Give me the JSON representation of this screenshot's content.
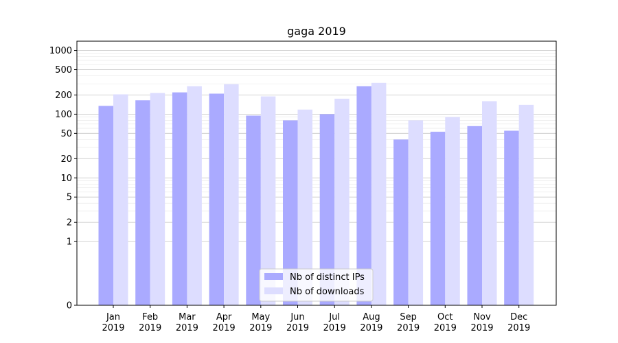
{
  "chart_data": {
    "type": "bar",
    "title": "gaga 2019",
    "xlabel": "",
    "ylabel": "",
    "yscale": "symlog",
    "ylim": [
      0,
      1400
    ],
    "yticks": [
      0,
      1,
      2,
      5,
      10,
      20,
      50,
      100,
      200,
      500,
      1000
    ],
    "ytick_labels": [
      "0",
      "1",
      "2",
      "5",
      "10",
      "20",
      "50",
      "100",
      "200",
      "500",
      "1000"
    ],
    "categories": [
      "Jan\n2019",
      "Feb\n2019",
      "Mar\n2019",
      "Apr\n2019",
      "May\n2019",
      "Jun\n2019",
      "Jul\n2019",
      "Aug\n2019",
      "Sep\n2019",
      "Oct\n2019",
      "Nov\n2019",
      "Dec\n2019"
    ],
    "category_lines": [
      [
        "Jan",
        "2019"
      ],
      [
        "Feb",
        "2019"
      ],
      [
        "Mar",
        "2019"
      ],
      [
        "Apr",
        "2019"
      ],
      [
        "May",
        "2019"
      ],
      [
        "Jun",
        "2019"
      ],
      [
        "Jul",
        "2019"
      ],
      [
        "Aug",
        "2019"
      ],
      [
        "Sep",
        "2019"
      ],
      [
        "Oct",
        "2019"
      ],
      [
        "Nov",
        "2019"
      ],
      [
        "Dec",
        "2019"
      ]
    ],
    "series": [
      {
        "name": "Nb of distinct IPs",
        "color": "#aaaaff",
        "values": [
          135,
          165,
          220,
          210,
          95,
          80,
          100,
          275,
          40,
          53,
          65,
          55
        ]
      },
      {
        "name": "Nb of downloads",
        "color": "#ddddff",
        "values": [
          205,
          215,
          275,
          295,
          190,
          118,
          175,
          310,
          80,
          90,
          160,
          140
        ]
      }
    ],
    "grid": true,
    "legend_position": "bottom-center"
  }
}
